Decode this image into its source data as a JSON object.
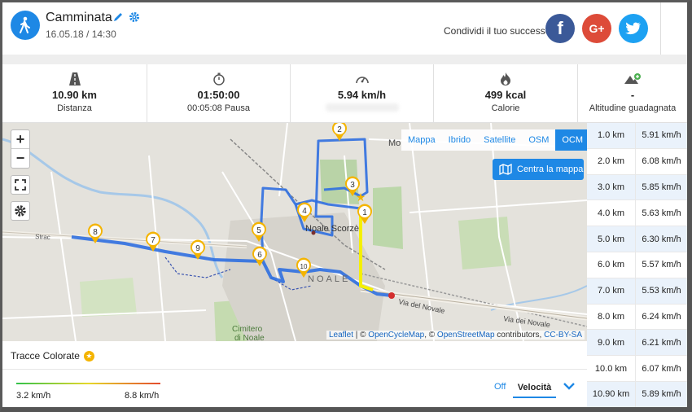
{
  "header": {
    "title": "Camminata",
    "date": "16.05.18 / 14:30",
    "share_label": "Condividi il tuo successo",
    "social": [
      {
        "name": "facebook",
        "glyph": "f",
        "color": "#3b5998"
      },
      {
        "name": "google-plus",
        "glyph": "G+",
        "color": "#dd4b39"
      },
      {
        "name": "twitter",
        "glyph": "t",
        "color": "#1da1f2"
      }
    ]
  },
  "stats": [
    {
      "icon": "road-icon",
      "value": "10.90 km",
      "label": "Distanza"
    },
    {
      "icon": "stopwatch-icon",
      "value": "01:50:00",
      "label": "00:05:08 Pausa"
    },
    {
      "icon": "speedometer-icon",
      "value": "5.94 km/h",
      "label": ""
    },
    {
      "icon": "flame-icon",
      "value": "499 kcal",
      "label": "Calorie"
    },
    {
      "icon": "mountain-up-icon",
      "value": "-",
      "label": "Altitudine guadagnata"
    }
  ],
  "map": {
    "layers": [
      "Mappa",
      "Ibrido",
      "Satellite",
      "OSM",
      "OCM"
    ],
    "active_layer": "OCM",
    "center_button": "Centra la mappa",
    "zoom_in": "+",
    "zoom_out": "−",
    "labels": {
      "town": "Noale Scorzè",
      "cemetery": "Cimitero di Noale",
      "street_left": "Strac",
      "street_right": "Via del Novale",
      "street_mid": "Via dei Novale",
      "area": "NOALE",
      "mo": "Mo"
    },
    "markers": [
      "1",
      "2",
      "3",
      "4",
      "5",
      "6",
      "7",
      "8",
      "9",
      "10"
    ],
    "attribution": {
      "leaflet": "Leaflet",
      "sep1": " | © ",
      "ocm": "OpenCycleMap",
      "sep2": ", © ",
      "osm": "OpenStreetMap",
      "contrib": " contributors, ",
      "license": "CC-BY-SA"
    }
  },
  "splits": [
    {
      "distance": "1.0 km",
      "speed": "5.91 km/h"
    },
    {
      "distance": "2.0 km",
      "speed": "6.08 km/h"
    },
    {
      "distance": "3.0 km",
      "speed": "5.85 km/h"
    },
    {
      "distance": "4.0 km",
      "speed": "5.63 km/h"
    },
    {
      "distance": "5.0 km",
      "speed": "6.30 km/h"
    },
    {
      "distance": "6.0 km",
      "speed": "5.57 km/h"
    },
    {
      "distance": "7.0 km",
      "speed": "5.53 km/h"
    },
    {
      "distance": "8.0 km",
      "speed": "6.24 km/h"
    },
    {
      "distance": "9.0 km",
      "speed": "6.21 km/h"
    },
    {
      "distance": "10.0 km",
      "speed": "6.07 km/h"
    },
    {
      "distance": "10.90 km",
      "speed": "5.89 km/h"
    }
  ],
  "bottom": {
    "tracce_label": "Tracce Colorate",
    "min_speed": "3.2 km/h",
    "max_speed": "8.8 km/h",
    "off_label": "Off",
    "velocita_label": "Velocità"
  },
  "colors": {
    "accent": "#1e88e5",
    "track": "#2f6fe0",
    "highlight": "#f5f000",
    "marker": "#f4b400"
  }
}
